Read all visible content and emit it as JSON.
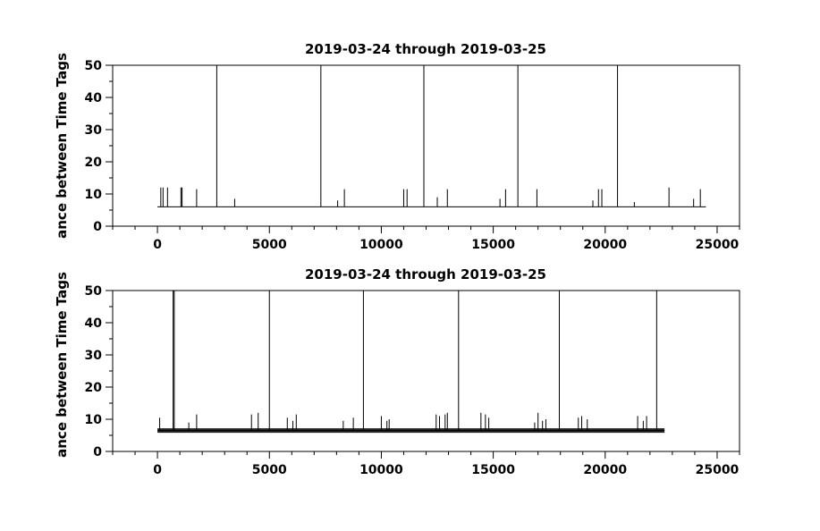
{
  "chart_data": [
    {
      "type": "line",
      "title": "2019-03-24 through 2019-03-25",
      "ylabel": "ance between Time Tags",
      "xlabel": "",
      "xlim": [
        -2000,
        26000
      ],
      "ylim": [
        0,
        50
      ],
      "x_ticks": [
        0,
        5000,
        10000,
        15000,
        20000,
        25000
      ],
      "y_ticks": [
        0,
        10,
        20,
        30,
        40,
        50
      ],
      "baseline": 6,
      "x_end": 24500,
      "spikes": [
        {
          "x": 150,
          "y": 12
        },
        {
          "x": 250,
          "y": 12
        },
        {
          "x": 450,
          "y": 12
        },
        {
          "x": 1050,
          "y": 12
        },
        {
          "x": 1100,
          "y": 12
        },
        {
          "x": 1750,
          "y": 11.5
        },
        {
          "x": 2650,
          "y": 50
        },
        {
          "x": 3450,
          "y": 8.5
        },
        {
          "x": 7300,
          "y": 50
        },
        {
          "x": 8050,
          "y": 8
        },
        {
          "x": 8350,
          "y": 11.5
        },
        {
          "x": 11000,
          "y": 11.5
        },
        {
          "x": 11150,
          "y": 11.5
        },
        {
          "x": 11900,
          "y": 50
        },
        {
          "x": 12500,
          "y": 9
        },
        {
          "x": 12950,
          "y": 11.5
        },
        {
          "x": 15300,
          "y": 8.5
        },
        {
          "x": 15550,
          "y": 11.5
        },
        {
          "x": 16100,
          "y": 50
        },
        {
          "x": 16950,
          "y": 11.5
        },
        {
          "x": 19450,
          "y": 8
        },
        {
          "x": 19700,
          "y": 11.5
        },
        {
          "x": 19850,
          "y": 11.5
        },
        {
          "x": 20550,
          "y": 50
        },
        {
          "x": 21300,
          "y": 7.5
        },
        {
          "x": 22850,
          "y": 12
        },
        {
          "x": 23950,
          "y": 8.5
        },
        {
          "x": 24250,
          "y": 11.5
        }
      ]
    },
    {
      "type": "line",
      "title": "2019-03-24 through 2019-03-25",
      "ylabel": "ance between Time Tags",
      "xlabel": "",
      "xlim": [
        -2000,
        26000
      ],
      "ylim": [
        0,
        50
      ],
      "x_ticks": [
        0,
        5000,
        10000,
        15000,
        20000,
        25000
      ],
      "y_ticks": [
        0,
        10,
        20,
        30,
        40,
        50
      ],
      "baseline": 6.5,
      "x_end": 22650,
      "spikes": [
        {
          "x": 100,
          "y": 10.5
        },
        {
          "x": 700,
          "y": 50
        },
        {
          "x": 750,
          "y": 50
        },
        {
          "x": 1400,
          "y": 9
        },
        {
          "x": 1750,
          "y": 11.5
        },
        {
          "x": 4200,
          "y": 11.5
        },
        {
          "x": 4500,
          "y": 12
        },
        {
          "x": 5000,
          "y": 50
        },
        {
          "x": 5800,
          "y": 10.5
        },
        {
          "x": 6050,
          "y": 9.5
        },
        {
          "x": 6200,
          "y": 11.5
        },
        {
          "x": 8300,
          "y": 9.5
        },
        {
          "x": 8750,
          "y": 10.5
        },
        {
          "x": 9200,
          "y": 50
        },
        {
          "x": 10000,
          "y": 11
        },
        {
          "x": 10250,
          "y": 9.5
        },
        {
          "x": 10350,
          "y": 10
        },
        {
          "x": 12450,
          "y": 11.5
        },
        {
          "x": 12600,
          "y": 11
        },
        {
          "x": 12850,
          "y": 11.5
        },
        {
          "x": 12950,
          "y": 12
        },
        {
          "x": 13450,
          "y": 50
        },
        {
          "x": 14450,
          "y": 12
        },
        {
          "x": 14650,
          "y": 11.5
        },
        {
          "x": 14800,
          "y": 10.5
        },
        {
          "x": 16850,
          "y": 9
        },
        {
          "x": 17000,
          "y": 12
        },
        {
          "x": 17200,
          "y": 9.5
        },
        {
          "x": 17350,
          "y": 10
        },
        {
          "x": 17950,
          "y": 50
        },
        {
          "x": 18800,
          "y": 10.5
        },
        {
          "x": 18950,
          "y": 11
        },
        {
          "x": 19200,
          "y": 10
        },
        {
          "x": 21450,
          "y": 11
        },
        {
          "x": 21700,
          "y": 9.5
        },
        {
          "x": 21850,
          "y": 11
        },
        {
          "x": 22300,
          "y": 50
        }
      ]
    }
  ]
}
